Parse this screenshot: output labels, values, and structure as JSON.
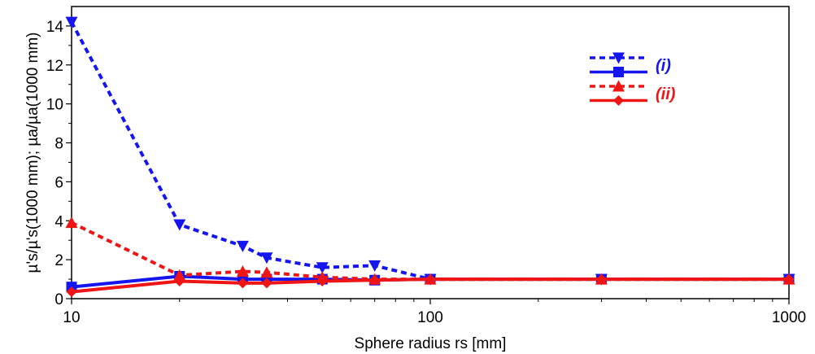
{
  "chart_data": {
    "type": "line",
    "title": "",
    "xlabel": "Sphere radius rs [mm]",
    "ylabel": "µ's/µ's(1000 mm); µa/µa(1000 mm)",
    "x_scale": "log",
    "xlim": [
      10,
      1000
    ],
    "ylim": [
      0,
      15
    ],
    "x_ticks": [
      10,
      100,
      1000
    ],
    "x_tick_labels": [
      "10",
      "100",
      "1000"
    ],
    "y_ticks": [
      0,
      2,
      4,
      6,
      8,
      10,
      12,
      14
    ],
    "y_tick_labels": [
      "0",
      "2",
      "4",
      "6",
      "8",
      "10",
      "12",
      "14"
    ],
    "legend_position": "top-right",
    "series": [
      {
        "name": "(i)",
        "color": "#1515f0",
        "line_style": "dotted",
        "marker": "triangle-down",
        "x": [
          10,
          20,
          30,
          35,
          50,
          70,
          100,
          300,
          1000
        ],
        "y": [
          14.2,
          3.8,
          2.7,
          2.1,
          1.6,
          1.7,
          1.0,
          1.0,
          1.0
        ]
      },
      {
        "name": "(i)",
        "color": "#1515f0",
        "line_style": "solid",
        "marker": "square",
        "x": [
          10,
          20,
          30,
          35,
          50,
          70,
          100,
          300,
          1000
        ],
        "y": [
          0.6,
          1.15,
          1.0,
          1.0,
          1.0,
          0.95,
          1.0,
          1.0,
          1.0
        ]
      },
      {
        "name": "(ii)",
        "color": "#f01515",
        "line_style": "dotted",
        "marker": "triangle-up",
        "x": [
          10,
          20,
          30,
          35,
          50,
          70,
          100,
          300,
          1000
        ],
        "y": [
          3.9,
          1.2,
          1.4,
          1.35,
          1.1,
          1.0,
          1.0,
          1.0,
          1.0
        ]
      },
      {
        "name": "(ii)",
        "color": "#f01515",
        "line_style": "solid",
        "marker": "diamond",
        "x": [
          10,
          20,
          30,
          35,
          50,
          70,
          100,
          300,
          1000
        ],
        "y": [
          0.35,
          0.9,
          0.8,
          0.8,
          0.9,
          0.95,
          1.0,
          1.0,
          1.0
        ]
      }
    ]
  }
}
